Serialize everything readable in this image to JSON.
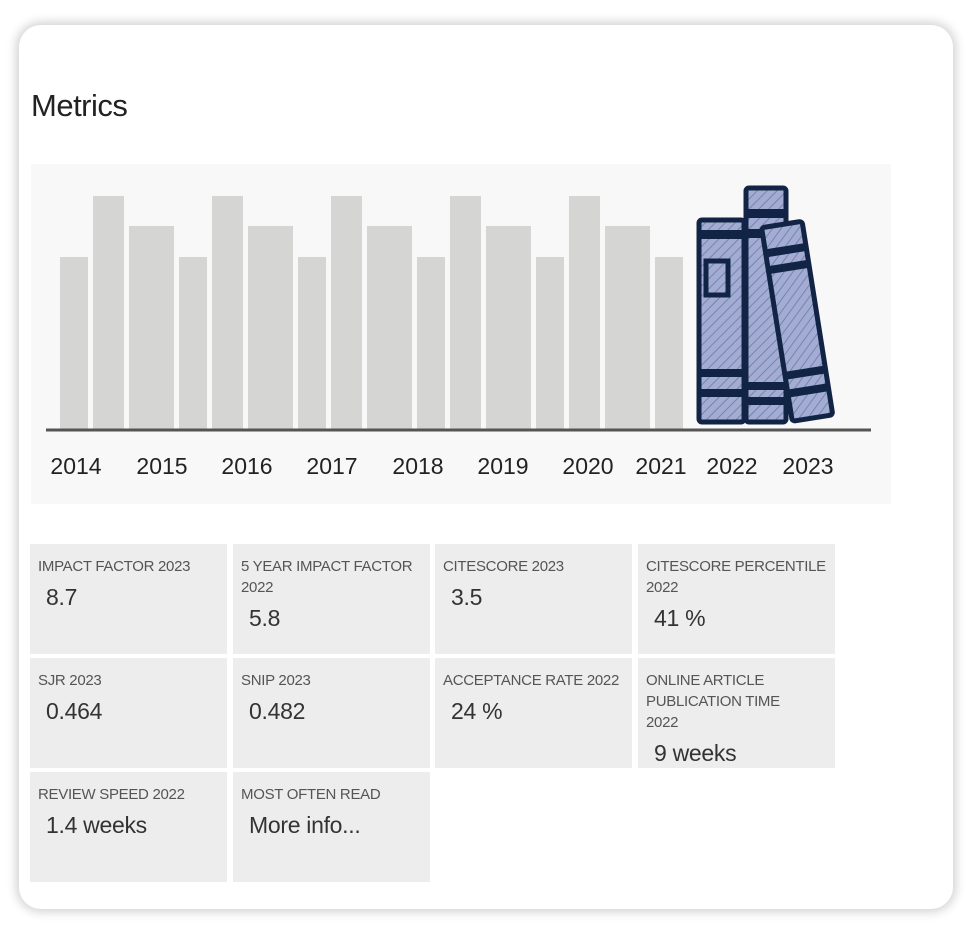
{
  "section": {
    "title": "Metrics"
  },
  "illustration": {
    "years": [
      "2014",
      "2015",
      "2016",
      "2017",
      "2018",
      "2019",
      "2020",
      "2021",
      "2022",
      "2023"
    ],
    "colors": {
      "placeholder_bar": "#d5d5d3",
      "book_fill": "#a3acd2",
      "book_outline": "#122445",
      "baseline": "#555555"
    }
  },
  "metrics": [
    {
      "label": "IMPACT FACTOR 2023",
      "value": "8.7"
    },
    {
      "label": "5 YEAR IMPACT FACTOR 2022",
      "value": "5.8"
    },
    {
      "label": "CITESCORE 2023",
      "value": "3.5"
    },
    {
      "label": "CITESCORE PERCENTILE 2022",
      "value": "41 %"
    },
    {
      "label": "SJR 2023",
      "value": "0.464"
    },
    {
      "label": "SNIP 2023",
      "value": "0.482"
    },
    {
      "label": "ACCEPTANCE RATE 2022",
      "value": "24 %"
    },
    {
      "label": "ONLINE ARTICLE PUBLICATION TIME 2022",
      "value": "9 weeks"
    },
    {
      "label": "REVIEW SPEED 2022",
      "value": "1.4 weeks"
    },
    {
      "label": "MOST OFTEN READ",
      "value": "More info..."
    }
  ]
}
